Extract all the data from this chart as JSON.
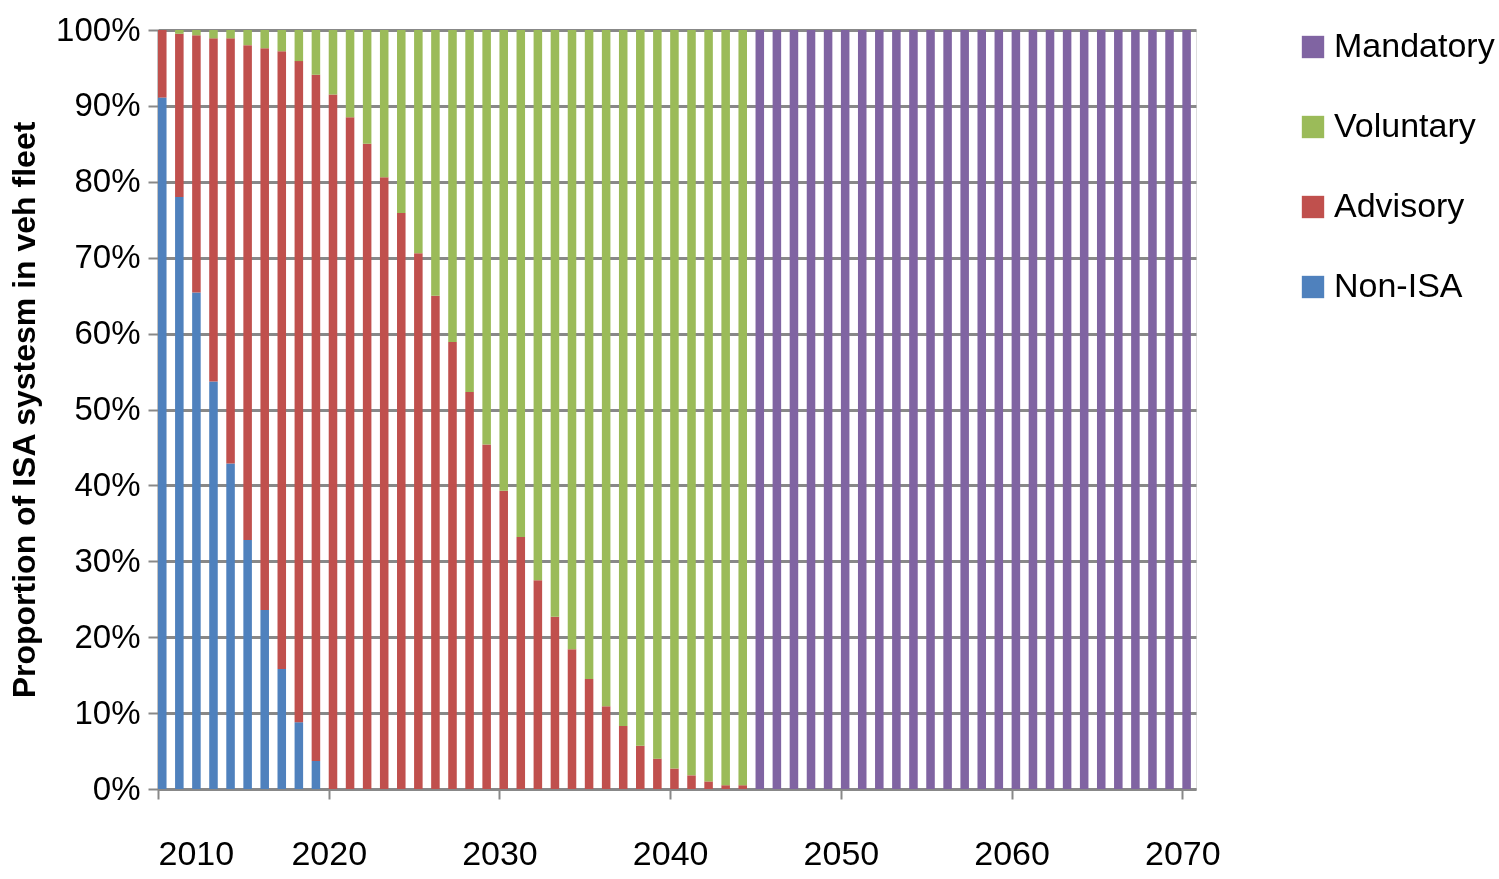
{
  "chart_data": {
    "type": "bar",
    "stacked": true,
    "ylabel": "Proportion of ISA systesm in veh fleet",
    "x": [
      2010,
      2011,
      2012,
      2013,
      2014,
      2015,
      2016,
      2017,
      2018,
      2019,
      2020,
      2021,
      2022,
      2023,
      2024,
      2025,
      2026,
      2027,
      2028,
      2029,
      2030,
      2031,
      2032,
      2033,
      2034,
      2035,
      2036,
      2037,
      2038,
      2039,
      2040,
      2041,
      2042,
      2043,
      2044,
      2045,
      2046,
      2047,
      2048,
      2049,
      2050,
      2051,
      2052,
      2053,
      2054,
      2055,
      2056,
      2057,
      2058,
      2059,
      2060,
      2061,
      2062,
      2063,
      2064,
      2065,
      2066,
      2067,
      2068,
      2069,
      2070
    ],
    "series": [
      {
        "name": "Non-ISA",
        "color": "#4f81bd",
        "values": [
          91.1,
          78.0,
          65.4,
          53.7,
          42.9,
          32.8,
          23.6,
          15.8,
          8.8,
          3.7,
          null,
          null,
          null,
          null,
          null,
          null,
          null,
          null,
          null,
          null,
          null,
          null,
          null,
          null,
          null,
          null,
          null,
          null,
          null,
          null,
          null,
          null,
          null,
          null,
          null,
          null,
          null,
          null,
          null,
          null,
          null,
          null,
          null,
          null,
          null,
          null,
          null,
          null,
          null,
          null,
          null,
          null,
          null,
          null,
          null,
          null,
          null,
          null,
          null,
          null,
          null
        ]
      },
      {
        "name": "Advisory",
        "color": "#c0504d",
        "values": [
          8.9,
          21.5,
          33.9,
          45.2,
          56.0,
          65.2,
          74.0,
          81.4,
          87.1,
          90.4,
          91.5,
          88.5,
          85.0,
          80.6,
          75.9,
          70.6,
          65.0,
          58.9,
          52.3,
          45.4,
          39.3,
          33.2,
          27.5,
          22.7,
          18.4,
          14.5,
          10.9,
          8.3,
          5.7,
          4.0,
          2.7,
          1.8,
          1.0,
          0.5,
          0.5,
          null,
          null,
          null,
          null,
          null,
          null,
          null,
          null,
          null,
          null,
          null,
          null,
          null,
          null,
          null,
          null,
          null,
          null,
          null,
          null,
          null,
          null,
          null,
          null,
          null,
          null
        ]
      },
      {
        "name": "Voluntary",
        "color": "#9bbb59",
        "values": [
          null,
          0.5,
          0.7,
          1.1,
          1.1,
          2.0,
          2.4,
          2.8,
          4.1,
          5.9,
          8.5,
          11.5,
          15.0,
          19.4,
          24.1,
          29.4,
          35.0,
          41.1,
          47.7,
          54.6,
          60.7,
          66.8,
          72.5,
          77.3,
          81.6,
          85.5,
          89.1,
          91.7,
          94.3,
          96.0,
          97.3,
          98.2,
          99.0,
          99.5,
          99.5,
          null,
          null,
          null,
          null,
          null,
          null,
          null,
          null,
          null,
          null,
          null,
          null,
          null,
          null,
          null,
          null,
          null,
          null,
          null,
          null,
          null,
          null,
          null,
          null,
          null,
          null
        ]
      },
      {
        "name": "Mandatory",
        "color": "#8064a2",
        "values": [
          null,
          null,
          null,
          null,
          null,
          null,
          null,
          null,
          null,
          null,
          null,
          null,
          null,
          null,
          null,
          null,
          null,
          null,
          null,
          null,
          null,
          null,
          null,
          null,
          null,
          null,
          null,
          null,
          null,
          null,
          null,
          null,
          null,
          null,
          null,
          100,
          100,
          100,
          100,
          100,
          100,
          100,
          100,
          100,
          100,
          100,
          100,
          100,
          100,
          100,
          100,
          100,
          100,
          100,
          100,
          100,
          100,
          100,
          100,
          100,
          100
        ]
      }
    ],
    "xlim": [
      2010,
      2070.8
    ],
    "xticks": [
      2010,
      2020,
      2030,
      2040,
      2050,
      2060,
      2070
    ],
    "ylim": [
      0,
      100
    ],
    "yticks": [
      {
        "value": 0,
        "label": "0%"
      },
      {
        "value": 10,
        "label": "10%"
      },
      {
        "value": 20,
        "label": "20%"
      },
      {
        "value": 30,
        "label": "30%"
      },
      {
        "value": 40,
        "label": "40%"
      },
      {
        "value": 50,
        "label": "50%"
      },
      {
        "value": 60,
        "label": "60%"
      },
      {
        "value": 70,
        "label": "70%"
      },
      {
        "value": 80,
        "label": "80%"
      },
      {
        "value": 90,
        "label": "90%"
      },
      {
        "value": 100,
        "label": "100%"
      }
    ],
    "grid": "y",
    "legend": "right"
  }
}
